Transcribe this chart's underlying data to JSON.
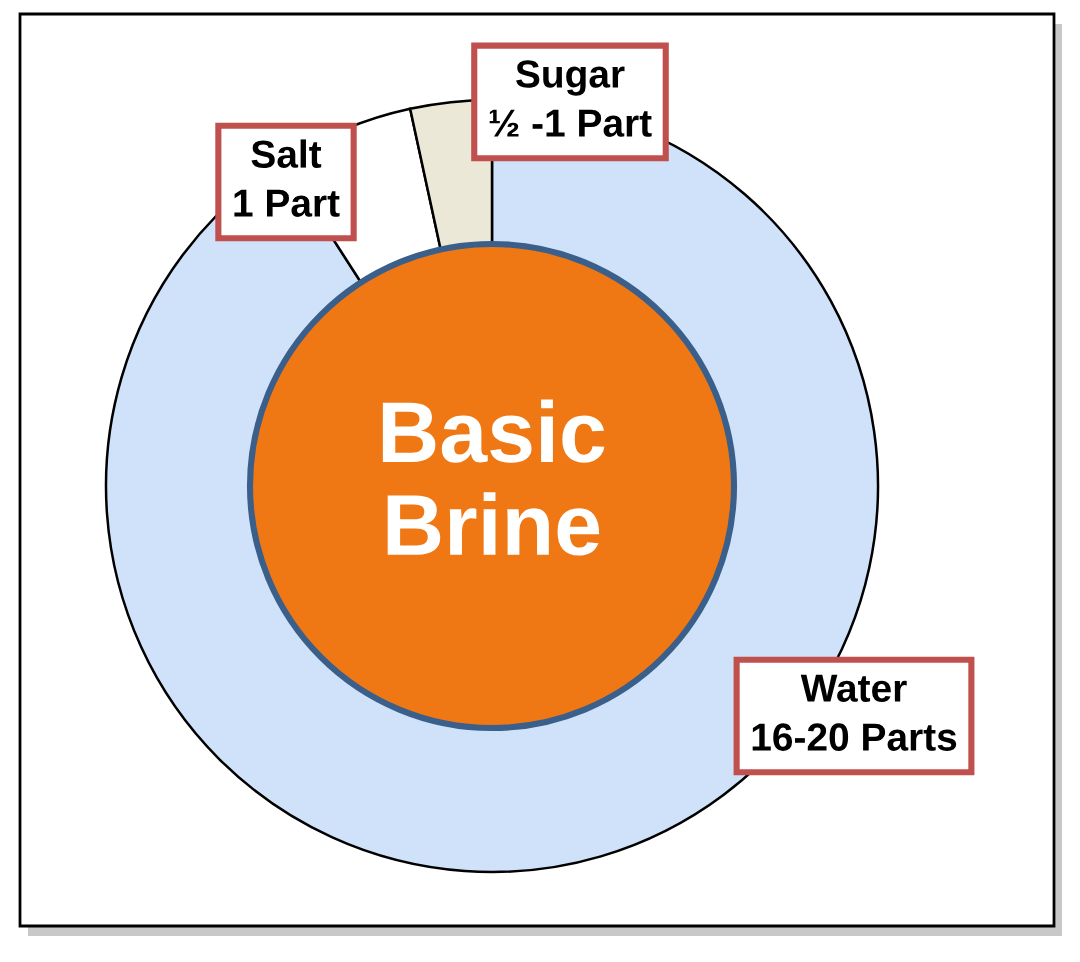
{
  "chart_data": {
    "type": "donut",
    "title": "Basic\nBrine",
    "categories": [
      "Water\n16-20 Parts",
      "Salt\n1 Part",
      "Sugar\n½ -1 Part"
    ],
    "values": [
      90.9,
      5.7,
      3.4
    ],
    "colors": [
      "#cfe2fa",
      "#ffffff",
      "#ece8d8"
    ]
  }
}
